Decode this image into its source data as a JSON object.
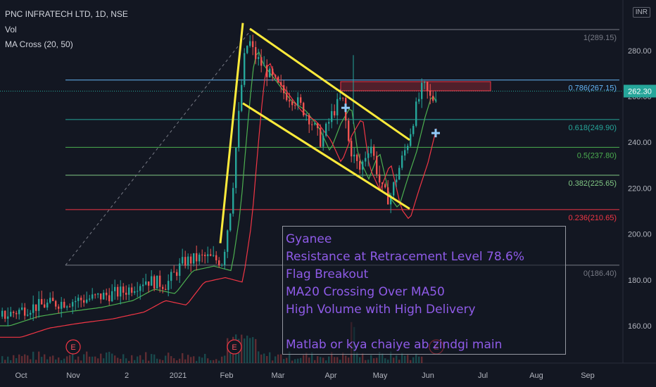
{
  "header": {
    "symbol": "PNC INFRATECH LTD, 1D, NSE",
    "vol_label": "Vol",
    "indicator": "MA Cross (20, 50)"
  },
  "currency_badge": "INR",
  "note_lines": [
    "Gyanee",
    "Resistance at Retracement Level 78.6%",
    "Flag Breakout",
    "MA20 Crossing Over MA50",
    "High Volume with High Delivery",
    "",
    "Matlab or kya chaiye ab zindgi main"
  ],
  "colors": {
    "background": "#131722",
    "up": "#26a69a",
    "down": "#ef5350",
    "flag": "#ffeb3b",
    "note_text": "#8f5be8"
  },
  "chart_data": {
    "type": "candlestick",
    "y_range": [
      148,
      300
    ],
    "x_tick_labels": [
      "Oct",
      "Nov",
      "2",
      "2021",
      "Feb",
      "Mar",
      "Apr",
      "May",
      "Jun",
      "Jul",
      "Aug",
      "Sep"
    ],
    "y_ticks": [
      160,
      180,
      200,
      220,
      240,
      260,
      280
    ],
    "current_price": 262.3,
    "fib_levels": [
      {
        "label": "1(289.15)",
        "value": 289.15,
        "color": "#787b86"
      },
      {
        "label": "0.786(267.15)",
        "value": 267.15,
        "color": "#64b5f6"
      },
      {
        "label": "0.618(249.90)",
        "value": 249.9,
        "color": "#26a69a"
      },
      {
        "label": "0.5(237.80)",
        "value": 237.8,
        "color": "#4caf50"
      },
      {
        "label": "0.382(225.65)",
        "value": 225.65,
        "color": "#81c784"
      },
      {
        "label": "0.236(210.65)",
        "value": 210.65,
        "color": "#f23645"
      },
      {
        "label": "0(186.40)",
        "value": 186.4,
        "color": "#787b86"
      }
    ],
    "earnings_markers": [
      "E",
      "E",
      "E"
    ]
  }
}
